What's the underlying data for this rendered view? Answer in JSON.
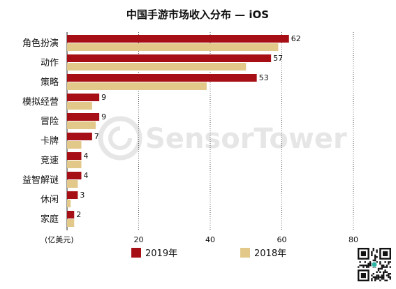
{
  "colors": {
    "series_2019": "#a50f15",
    "series_2018": "#e2c98a",
    "grid": "#555555",
    "watermark": "#e6e6e6"
  },
  "watermark": {
    "text": "SensorTower"
  },
  "chart_data": {
    "type": "bar",
    "orientation": "horizontal",
    "title": "中国手游市场收入分布 — iOS",
    "unit_label": "(亿美元)",
    "categories": [
      "角色扮演",
      "动作",
      "策略",
      "模拟经营",
      "冒险",
      "卡牌",
      "竞速",
      "益智解谜",
      "休闲",
      "家庭"
    ],
    "series": [
      {
        "name": "2019年",
        "color": "#a50f15",
        "values": [
          62,
          57,
          53,
          9,
          9,
          7,
          4,
          4,
          3,
          2
        ]
      },
      {
        "name": "2018年",
        "color": "#e2c98a",
        "values": [
          59,
          50,
          39,
          7,
          8,
          4,
          4,
          3,
          1,
          2
        ]
      }
    ],
    "data_labels": [
      62,
      57,
      53,
      9,
      9,
      7,
      4,
      4,
      3,
      2
    ],
    "xlim": [
      0,
      80
    ],
    "xticks": [
      20,
      40,
      60,
      80
    ],
    "grid": "vertical dotted",
    "legend_position": "bottom"
  }
}
